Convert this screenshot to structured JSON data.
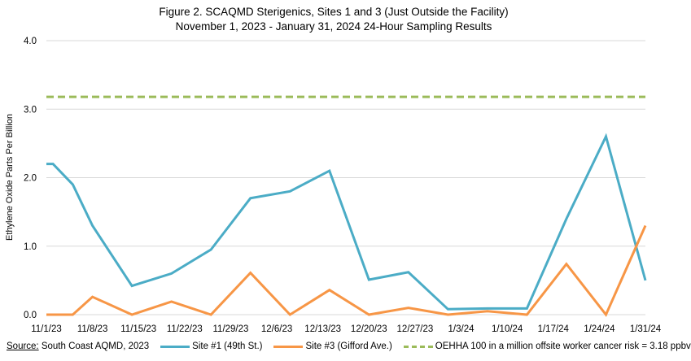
{
  "chart_data": {
    "type": "line",
    "title": "Figure 2. SCAQMD Sterigenics, Sites 1 and 3 (Just Outside the Facility)",
    "subtitle": "November 1, 2023 - January 31, 2024 24-Hour Sampling Results",
    "xlabel": "",
    "ylabel": "Ethylene Oxide Parts Per Billion",
    "ylim": [
      0,
      4.0
    ],
    "yticks": [
      "0.0",
      "1.0",
      "2.0",
      "3.0",
      "4.0"
    ],
    "xlim": [
      "2023-11-01",
      "2024-01-31"
    ],
    "xticks": [
      "11/1/23",
      "11/8/23",
      "11/15/23",
      "11/22/23",
      "11/29/23",
      "12/6/23",
      "12/13/23",
      "12/20/23",
      "12/27/23",
      "1/3/24",
      "1/10/24",
      "1/17/24",
      "1/24/24",
      "1/31/24"
    ],
    "grid": "horizontal",
    "legend_position": "bottom",
    "x": [
      "2023-11-01",
      "2023-11-02",
      "2023-11-05",
      "2023-11-08",
      "2023-11-14",
      "2023-11-20",
      "2023-11-26",
      "2023-12-02",
      "2023-12-08",
      "2023-12-14",
      "2023-12-20",
      "2023-12-26",
      "2024-01-01",
      "2024-01-07",
      "2024-01-13",
      "2024-01-19",
      "2024-01-25",
      "2024-01-31"
    ],
    "series": [
      {
        "name": "Site #1 (49th St.)",
        "color": "#4bacc6",
        "values": [
          2.2,
          2.2,
          1.9,
          1.3,
          0.42,
          0.6,
          0.95,
          1.7,
          1.8,
          2.1,
          0.51,
          0.62,
          0.08,
          0.09,
          0.09,
          1.4,
          2.6,
          0.5
        ]
      },
      {
        "name": "Site #3 (Gifford Ave.)",
        "color": "#f79646",
        "values": [
          0,
          0,
          0,
          0.26,
          0,
          0.19,
          0,
          0.61,
          0,
          0.36,
          0,
          0.1,
          0,
          0.05,
          0,
          0.74,
          0,
          1.3
        ]
      }
    ],
    "reference_line": {
      "name": "OEHHA 100 in a million offsite worker cancer risk = 3.18 ppbv",
      "value": 3.18,
      "color": "#9bbb59",
      "style": "dashed"
    },
    "source_label": "Source:",
    "source_text": "South Coast AQMD, 2023"
  }
}
